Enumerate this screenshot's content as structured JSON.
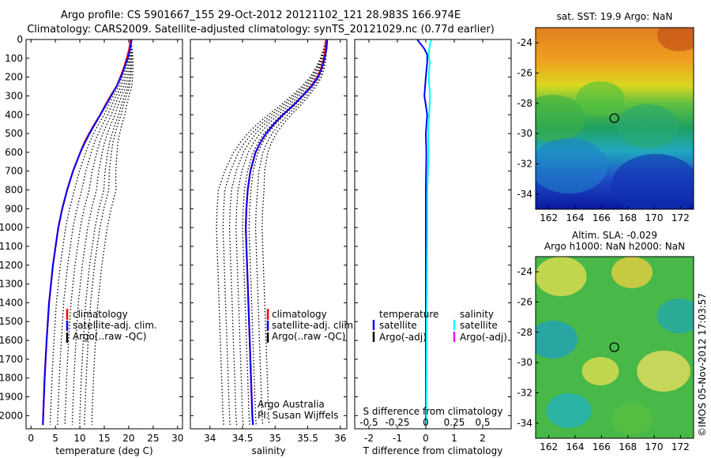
{
  "header": {
    "title_line1": "Argo profile: CS 5901667_155 29-Oct-2012 20121102_121 28.983S 166.974E",
    "title_line2": "Climatology: CARS2009. Satellite-adjusted climatology: synTS_20121029.nc (0.77d earlier)"
  },
  "colors": {
    "climatology": "#ff0000",
    "satellite": "#0000ff",
    "argo": "#000000",
    "s_satellite": "#00ffff",
    "s_argo": "#ff00ff"
  },
  "chart_data": [
    {
      "type": "line",
      "panel": "temperature",
      "xlabel": "temperature (deg C)",
      "ylabel": "",
      "xlim": [
        -1,
        31
      ],
      "ylim": [
        2070,
        0
      ],
      "y_reversed": true,
      "xticks": [
        0,
        5,
        10,
        15,
        20,
        25,
        30
      ],
      "yticks": [
        0,
        100,
        200,
        300,
        400,
        500,
        600,
        700,
        800,
        900,
        1000,
        1100,
        1200,
        1300,
        1400,
        1500,
        1600,
        1700,
        1800,
        1900,
        2000
      ],
      "grid": false,
      "legend_entries": [
        "climatology",
        "satellite-adj. clim.",
        "Argo(..raw -QC)"
      ],
      "depth": [
        0,
        50,
        100,
        150,
        200,
        250,
        300,
        350,
        400,
        450,
        500,
        550,
        600,
        700,
        800,
        900,
        1000,
        1200,
        1400,
        1600,
        1800,
        2000,
        2050
      ],
      "series": [
        {
          "name": "climatology",
          "values": [
            20.4,
            20.1,
            19.6,
            19.0,
            18.3,
            17.5,
            16.3,
            15.2,
            14.2,
            13.0,
            11.9,
            10.9,
            10.1,
            8.6,
            7.4,
            6.4,
            5.6,
            4.5,
            3.7,
            3.2,
            2.8,
            2.5,
            2.45
          ]
        },
        {
          "name": "satellite-adj. clim.",
          "values": [
            20.6,
            20.3,
            19.8,
            19.1,
            18.4,
            17.5,
            16.4,
            15.3,
            14.2,
            13.1,
            12.0,
            11.0,
            10.1,
            8.6,
            7.4,
            6.4,
            5.6,
            4.5,
            3.7,
            3.2,
            2.8,
            2.5,
            2.45
          ]
        }
      ]
    },
    {
      "type": "line",
      "panel": "salinity",
      "xlabel": "salinity",
      "xlim": [
        33.7,
        36.1
      ],
      "ylim": [
        2070,
        0
      ],
      "xticks": [
        34,
        34.5,
        35,
        35.5,
        36
      ],
      "legend_entries": [
        "climatology",
        "satellite-adj. clim.",
        "Argo(..raw -QC)"
      ],
      "annotation": [
        "Argo Australia",
        "PI: Susan Wijffels"
      ],
      "depth": [
        0,
        50,
        100,
        150,
        200,
        250,
        300,
        350,
        400,
        450,
        500,
        550,
        600,
        700,
        800,
        900,
        1000,
        1100,
        1200,
        1300,
        1400,
        1600,
        1800,
        2000,
        2050
      ],
      "series": [
        {
          "name": "climatology",
          "values": [
            35.78,
            35.77,
            35.75,
            35.71,
            35.65,
            35.55,
            35.42,
            35.28,
            35.12,
            34.98,
            34.86,
            34.77,
            34.7,
            34.62,
            34.58,
            34.56,
            34.55,
            34.56,
            34.57,
            34.58,
            34.59,
            34.61,
            34.63,
            34.65,
            34.66
          ]
        },
        {
          "name": "satellite-adj. clim.",
          "values": [
            35.8,
            35.79,
            35.76,
            35.72,
            35.66,
            35.56,
            35.42,
            35.28,
            35.12,
            34.98,
            34.86,
            34.77,
            34.7,
            34.62,
            34.58,
            34.56,
            34.55,
            34.56,
            34.57,
            34.58,
            34.59,
            34.61,
            34.63,
            34.65,
            34.66
          ]
        }
      ]
    },
    {
      "type": "line",
      "panel": "difference",
      "xlabel": "T difference from climatology",
      "top_xlabel": "S difference from climatology",
      "xlim": [
        -2.5,
        3.0
      ],
      "ylim": [
        2070,
        0
      ],
      "xticks": [
        -2,
        -1,
        0,
        1,
        2
      ],
      "top_xticks": [
        "-0.5",
        "-0.25",
        "0",
        "0.25",
        "0.5"
      ],
      "legend_temperature": {
        "title": "temperature",
        "entries": [
          "satellite",
          "Argo(-adj)"
        ]
      },
      "legend_salinity": {
        "title": "salinity",
        "entries": [
          "satellite",
          "Argo(-adj)"
        ]
      },
      "depth": [
        0,
        20,
        50,
        80,
        120,
        200,
        300,
        400,
        500,
        600,
        800,
        1000,
        1500,
        2000,
        2050
      ],
      "series": [
        {
          "name": "satellite",
          "quantity": "temperature",
          "values": [
            -0.3,
            -0.2,
            -0.05,
            0.05,
            0.05,
            0.0,
            -0.05,
            0.05,
            0.0,
            0.02,
            0.0,
            0.0,
            0.0,
            0.0,
            0.0
          ]
        },
        {
          "name": "satellite",
          "quantity": "salinity",
          "values": [
            0.2,
            0.15,
            0.12,
            0.1,
            0.14,
            0.1,
            0.15,
            0.12,
            0.08,
            0.1,
            0.05,
            0.05,
            0.03,
            0.02,
            0.02
          ]
        }
      ]
    },
    {
      "type": "heatmap",
      "panel": "sst_map",
      "title": "sat. SST: 19.9  Argo: NaN",
      "xticks": [
        162,
        164,
        166,
        168,
        170,
        172
      ],
      "yticks": [
        -24,
        -26,
        -28,
        -30,
        -32,
        -34
      ],
      "xlim": [
        161,
        173
      ],
      "ylim": [
        -35,
        -23
      ],
      "float_position": [
        166.974,
        -28.983
      ]
    },
    {
      "type": "heatmap",
      "panel": "sla_map",
      "title_line1": "Altim. SLA: -0.029",
      "title_line2": "Argo h1000: NaN  h2000: NaN",
      "xticks": [
        162,
        164,
        166,
        168,
        170,
        172
      ],
      "yticks": [
        -24,
        -26,
        -28,
        -30,
        -32,
        -34
      ],
      "xlim": [
        161,
        173
      ],
      "ylim": [
        -35,
        -23
      ],
      "float_position": [
        166.974,
        -28.983
      ]
    }
  ],
  "footer": {
    "stamp": "©IMOS 05-Nov-2012 17:03:57"
  }
}
